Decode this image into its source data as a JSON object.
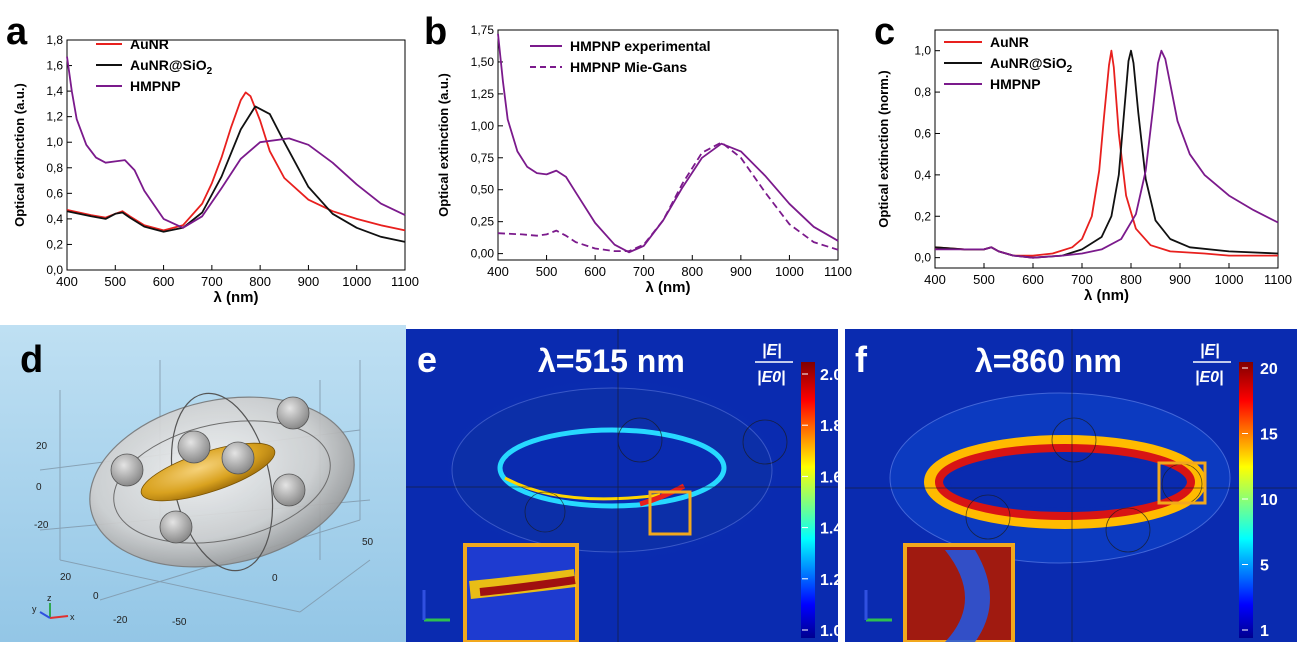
{
  "panel_letters": {
    "a": "a",
    "b": "b",
    "c": "c",
    "d": "d",
    "e": "e",
    "f": "f"
  },
  "chart_data": [
    {
      "id": "a",
      "type": "line",
      "xlabel": "λ (nm)",
      "ylabel": "Optical extinction (a.u.)",
      "xlim": [
        400,
        1100
      ],
      "ylim": [
        0.0,
        1.8
      ],
      "xticks": [
        400,
        500,
        600,
        700,
        800,
        900,
        1000,
        1100
      ],
      "yticks": [
        "0,0",
        "0,2",
        "0,4",
        "0,6",
        "0,8",
        "1,0",
        "1,2",
        "1,4",
        "1,6",
        "1,8"
      ],
      "ytick_values": [
        0.0,
        0.2,
        0.4,
        0.6,
        0.8,
        1.0,
        1.2,
        1.4,
        1.6,
        1.8
      ],
      "grid": false,
      "legend_position": "top-left",
      "series": [
        {
          "name": "AuNR",
          "color": "#e8201e",
          "dashed": false,
          "x": [
            400,
            450,
            480,
            500,
            515,
            530,
            560,
            600,
            640,
            680,
            700,
            720,
            740,
            760,
            770,
            780,
            800,
            820,
            850,
            900,
            950,
            1000,
            1050,
            1100
          ],
          "y": [
            0.47,
            0.43,
            0.41,
            0.44,
            0.46,
            0.42,
            0.35,
            0.31,
            0.35,
            0.52,
            0.68,
            0.88,
            1.12,
            1.33,
            1.39,
            1.36,
            1.17,
            0.93,
            0.72,
            0.55,
            0.46,
            0.4,
            0.35,
            0.31
          ]
        },
        {
          "name": "AuNR@SiO2",
          "color": "#111111",
          "dashed": false,
          "x": [
            400,
            450,
            480,
            500,
            515,
            530,
            560,
            600,
            640,
            680,
            720,
            760,
            790,
            820,
            850,
            900,
            950,
            1000,
            1050,
            1100
          ],
          "y": [
            0.46,
            0.42,
            0.4,
            0.44,
            0.45,
            0.41,
            0.34,
            0.3,
            0.33,
            0.45,
            0.73,
            1.1,
            1.28,
            1.22,
            1.0,
            0.65,
            0.44,
            0.33,
            0.26,
            0.22
          ]
        },
        {
          "name": "HMPNP",
          "color": "#7b1a8c",
          "dashed": false,
          "x": [
            400,
            410,
            420,
            440,
            460,
            480,
            500,
            520,
            540,
            560,
            600,
            640,
            680,
            720,
            760,
            800,
            860,
            900,
            950,
            1000,
            1050,
            1100
          ],
          "y": [
            1.67,
            1.4,
            1.18,
            0.98,
            0.88,
            0.84,
            0.85,
            0.86,
            0.78,
            0.62,
            0.4,
            0.33,
            0.42,
            0.64,
            0.87,
            1.0,
            1.03,
            0.98,
            0.84,
            0.67,
            0.52,
            0.43
          ]
        }
      ]
    },
    {
      "id": "b",
      "type": "line",
      "xlabel": "λ (nm)",
      "ylabel": "Optical extinction (a.u.)",
      "xlim": [
        400,
        1100
      ],
      "ylim": [
        -0.05,
        1.75
      ],
      "xticks": [
        400,
        500,
        600,
        700,
        800,
        900,
        1000,
        1100
      ],
      "yticks": [
        "0,00",
        "0,25",
        "0,50",
        "0,75",
        "1,00",
        "1,25",
        "1,50",
        "1,75"
      ],
      "ytick_values": [
        0.0,
        0.25,
        0.5,
        0.75,
        1.0,
        1.25,
        1.5,
        1.75
      ],
      "grid": false,
      "legend_position": "top-right",
      "series": [
        {
          "name": "HMPNP experimental",
          "color": "#7b1a8c",
          "dashed": false,
          "x": [
            400,
            410,
            420,
            440,
            460,
            480,
            500,
            520,
            540,
            560,
            600,
            640,
            670,
            700,
            740,
            780,
            820,
            860,
            900,
            950,
            1000,
            1050,
            1100
          ],
          "y": [
            1.72,
            1.35,
            1.05,
            0.8,
            0.68,
            0.63,
            0.62,
            0.65,
            0.6,
            0.48,
            0.24,
            0.07,
            0.01,
            0.06,
            0.26,
            0.52,
            0.75,
            0.86,
            0.8,
            0.61,
            0.39,
            0.21,
            0.1
          ]
        },
        {
          "name": "HMPNP Mie-Gans",
          "color": "#7b1a8c",
          "dashed": true,
          "x": [
            400,
            450,
            480,
            500,
            520,
            540,
            560,
            600,
            640,
            670,
            700,
            740,
            780,
            820,
            860,
            900,
            950,
            1000,
            1050,
            1100
          ],
          "y": [
            0.16,
            0.15,
            0.14,
            0.15,
            0.18,
            0.14,
            0.09,
            0.04,
            0.02,
            0.02,
            0.07,
            0.26,
            0.55,
            0.79,
            0.87,
            0.75,
            0.48,
            0.23,
            0.09,
            0.03
          ]
        }
      ]
    },
    {
      "id": "c",
      "type": "line",
      "xlabel": "λ (nm)",
      "ylabel": "Optical extinction (norm.)",
      "xlim": [
        400,
        1100
      ],
      "ylim": [
        -0.05,
        1.1
      ],
      "xticks": [
        400,
        500,
        600,
        700,
        800,
        900,
        1000,
        1100
      ],
      "yticks": [
        "0,0",
        "0,2",
        "0,4",
        "0,6",
        "0,8",
        "1,0"
      ],
      "ytick_values": [
        0.0,
        0.2,
        0.4,
        0.6,
        0.8,
        1.0
      ],
      "grid": false,
      "legend_position": "top-left",
      "series": [
        {
          "name": "AuNR",
          "color": "#e8201e",
          "dashed": false,
          "x": [
            400,
            460,
            500,
            515,
            530,
            560,
            600,
            640,
            680,
            700,
            720,
            735,
            745,
            755,
            760,
            765,
            775,
            790,
            810,
            840,
            880,
            950,
            1000,
            1100
          ],
          "y": [
            0.05,
            0.04,
            0.04,
            0.05,
            0.03,
            0.01,
            0.01,
            0.02,
            0.05,
            0.09,
            0.2,
            0.42,
            0.68,
            0.93,
            1.0,
            0.92,
            0.6,
            0.3,
            0.14,
            0.06,
            0.03,
            0.02,
            0.01,
            0.01
          ]
        },
        {
          "name": "AuNR@SiO2",
          "color": "#111111",
          "dashed": false,
          "x": [
            400,
            460,
            500,
            515,
            530,
            560,
            600,
            660,
            700,
            740,
            760,
            775,
            785,
            795,
            800,
            805,
            815,
            830,
            850,
            880,
            920,
            1000,
            1100
          ],
          "y": [
            0.05,
            0.04,
            0.04,
            0.05,
            0.03,
            0.01,
            0.0,
            0.01,
            0.04,
            0.1,
            0.2,
            0.4,
            0.68,
            0.95,
            1.0,
            0.94,
            0.7,
            0.38,
            0.18,
            0.09,
            0.05,
            0.03,
            0.02
          ]
        },
        {
          "name": "HMPNP",
          "color": "#7b1a8c",
          "dashed": false,
          "x": [
            400,
            460,
            500,
            515,
            530,
            560,
            600,
            660,
            700,
            740,
            780,
            810,
            830,
            845,
            855,
            862,
            870,
            880,
            895,
            920,
            950,
            1000,
            1050,
            1100
          ],
          "y": [
            0.04,
            0.04,
            0.04,
            0.05,
            0.03,
            0.01,
            0.0,
            0.01,
            0.02,
            0.04,
            0.09,
            0.21,
            0.42,
            0.72,
            0.94,
            1.0,
            0.96,
            0.84,
            0.66,
            0.5,
            0.4,
            0.3,
            0.23,
            0.17
          ]
        }
      ]
    }
  ],
  "panel_d": {
    "axis_ticks_left": [
      "20",
      "0",
      "-20"
    ],
    "axis_ticks_bottom": [
      "20",
      "0",
      "-20",
      "-50",
      "0",
      "50"
    ],
    "triad_labels": {
      "x": "x",
      "y": "y",
      "z": "z"
    }
  },
  "panel_e": {
    "title": "λ=515 nm",
    "colorbar_label_num": "|E|",
    "colorbar_label_den": "|E0|",
    "colorbar_ticks": [
      "2.0",
      "1.8",
      "1.6",
      "1.4",
      "1.2",
      "1.0"
    ]
  },
  "panel_f": {
    "title": "λ=860 nm",
    "colorbar_label_num": "|E|",
    "colorbar_label_den": "|E0|",
    "colorbar_ticks": [
      "20",
      "15",
      "10",
      "5",
      "1"
    ]
  },
  "colors": {
    "aunr": "#e8201e",
    "aunr_sio2": "#111111",
    "hmpnp": "#7b1a8c",
    "field_bg": "#0a2bb0",
    "inset_border": "#f2a81d",
    "panel_d_bg": "#a9d3ec"
  }
}
